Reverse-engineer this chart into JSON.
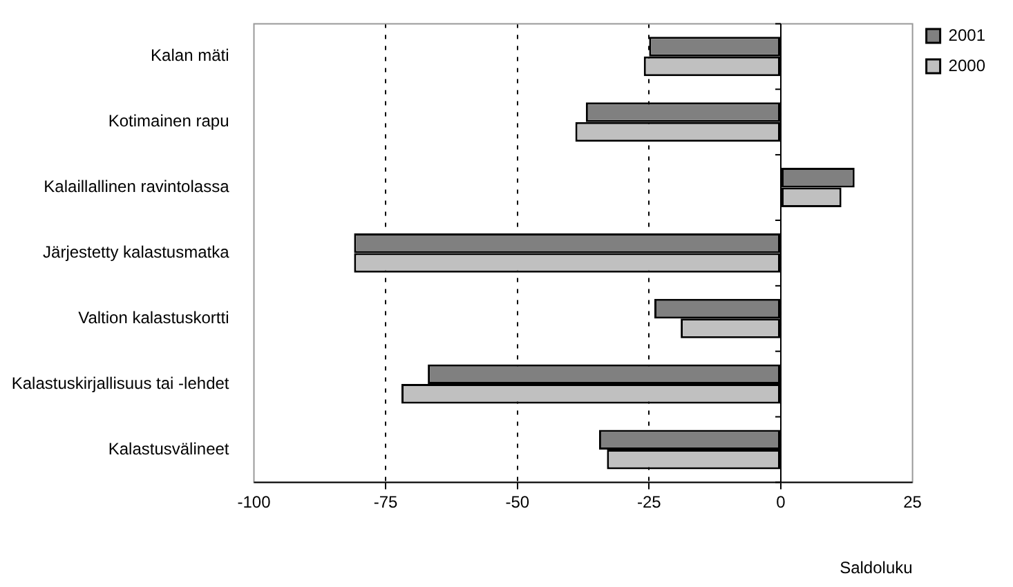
{
  "chart_data": {
    "type": "bar",
    "orientation": "horizontal",
    "xlabel": "Saldoluku",
    "categories": [
      "Kalan mäti",
      "Kotimainen rapu",
      "Kalaillallinen ravintolassa",
      "Järjestetty kalastusmatka",
      "Valtion kalastuskortti",
      "Kalastuskirjallisuus tai -lehdet",
      "Kalastusvälineet"
    ],
    "series": [
      {
        "name": "2001",
        "color": "#808080",
        "values": [
          -25,
          -37,
          14,
          -81,
          -24,
          -67,
          -34.5
        ]
      },
      {
        "name": "2000",
        "color": "#c0c0c0",
        "values": [
          -26,
          -39,
          11.5,
          -81,
          -19,
          -72,
          -33
        ]
      }
    ],
    "xlim": [
      -100,
      25
    ],
    "xticks": [
      -100,
      -75,
      -50,
      -25,
      0,
      25
    ],
    "grid": "x",
    "line_style": "dashed",
    "legend": "top right"
  }
}
